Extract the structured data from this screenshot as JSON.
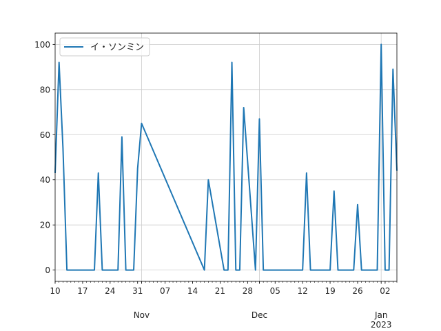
{
  "chart_data": {
    "type": "line",
    "series": [
      {
        "name": "イ・ソンミン",
        "color": "#1f77b4",
        "x": [
          "2022-10-10",
          "2022-10-11",
          "2022-10-12",
          "2022-10-13",
          "2022-10-20",
          "2022-10-21",
          "2022-10-22",
          "2022-10-26",
          "2022-10-27",
          "2022-10-28",
          "2022-10-30",
          "2022-10-31",
          "2022-11-01",
          "2022-11-17",
          "2022-11-18",
          "2022-11-22",
          "2022-11-23",
          "2022-11-24",
          "2022-11-25",
          "2022-11-26",
          "2022-11-27",
          "2022-11-30",
          "2022-12-01",
          "2022-12-02",
          "2022-12-12",
          "2022-12-13",
          "2022-12-14",
          "2022-12-19",
          "2022-12-20",
          "2022-12-21",
          "2022-12-25",
          "2022-12-26",
          "2022-12-27",
          "2022-12-31",
          "2023-01-01",
          "2023-01-02",
          "2023-01-03",
          "2023-01-04",
          "2023-01-05"
        ],
        "values": [
          43,
          92,
          54,
          0,
          0,
          43,
          0,
          0,
          59,
          0,
          0,
          45,
          65,
          0,
          40,
          0,
          0,
          92,
          0,
          0,
          72,
          0,
          67,
          0,
          0,
          43,
          0,
          0,
          35,
          0,
          0,
          29,
          0,
          0,
          100,
          0,
          0,
          89,
          44
        ]
      }
    ],
    "xlim": [
      "2022-10-10",
      "2023-01-05"
    ],
    "ylim": [
      -5,
      105
    ],
    "yticks": [
      0,
      20,
      40,
      60,
      80,
      100
    ],
    "xticks": [
      {
        "date": "2022-10-10",
        "label": "10"
      },
      {
        "date": "2022-10-17",
        "label": "17"
      },
      {
        "date": "2022-10-24",
        "label": "24"
      },
      {
        "date": "2022-10-31",
        "label": "31"
      },
      {
        "date": "2022-11-07",
        "label": "07"
      },
      {
        "date": "2022-11-14",
        "label": "14"
      },
      {
        "date": "2022-11-21",
        "label": "21"
      },
      {
        "date": "2022-11-28",
        "label": "28"
      },
      {
        "date": "2022-12-05",
        "label": "05"
      },
      {
        "date": "2022-12-12",
        "label": "12"
      },
      {
        "date": "2022-12-19",
        "label": "19"
      },
      {
        "date": "2022-12-26",
        "label": "26"
      },
      {
        "date": "2023-01-02",
        "label": "02"
      }
    ],
    "major_xticks": [
      {
        "date": "2022-11-01",
        "label": "Nov"
      },
      {
        "date": "2022-12-01",
        "label": "Dec"
      },
      {
        "date": "2023-01-01",
        "label": "Jan",
        "sublabel": "2023"
      }
    ],
    "grid": true,
    "legend_position": "upper-left",
    "title": "",
    "xlabel": "",
    "ylabel": ""
  }
}
